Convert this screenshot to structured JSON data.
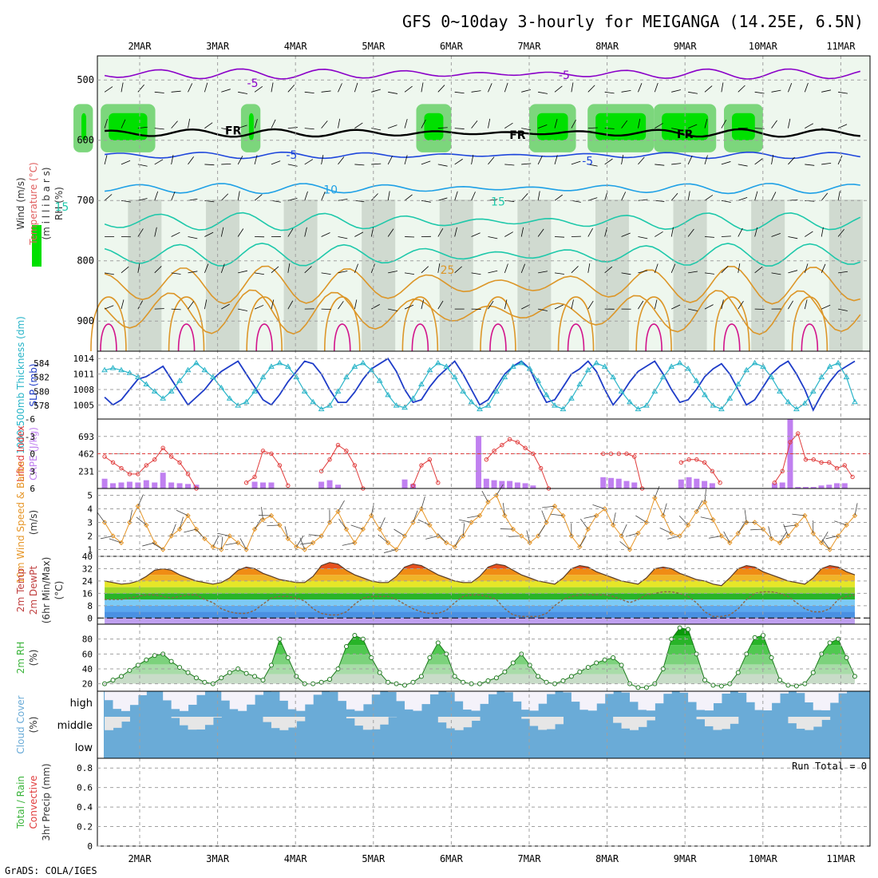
{
  "title": "GFS 0~10day 3-hourly for MEIGANGA (14.25E, 6.5N)",
  "footer": "GrADS: COLA/IGES",
  "dates": [
    "2MAR",
    "3MAR",
    "4MAR",
    "5MAR",
    "6MAR",
    "7MAR",
    "8MAR",
    "9MAR",
    "10MAR",
    "11MAR"
  ],
  "colors": {
    "rh_green": "#00e000",
    "temp_neg": "#8a00c8",
    "temp_blue": "#1e46dc",
    "temp_cyan": "#1ea0e6",
    "temp_teal": "#1ec8aa",
    "temp_orange": "#dc9628",
    "temp_magenta": "#d2148c",
    "slp": "#1e3cc8",
    "thickness": "#28b4c8",
    "cape_bar": "#c080f0",
    "lifted_index": "#e03c3c",
    "wind_speed": "#e69628",
    "rh2m": "#3cb43c",
    "cloud": "#6aabd7",
    "grid": "#a0a0a0"
  },
  "panels": [
    {
      "key": "upper",
      "labels": [
        "Wind (m/s)",
        "Temperature (°C)",
        "(m i l l i b a r s)",
        "RH (%)"
      ]
    },
    {
      "key": "slp",
      "labels": [
        "1000-500mb Thickness (dm)",
        "SLP (mb)"
      ]
    },
    {
      "key": "cape",
      "labels": [
        "Lifted Index",
        "CAPE (J/kg)"
      ]
    },
    {
      "key": "wind",
      "labels": [
        "10m Wind Speed & Barbs",
        "(m/s)"
      ]
    },
    {
      "key": "temp",
      "labels": [
        "2m Temp",
        "2m DewPt",
        "(6hr Min/Max)",
        "(°C)"
      ]
    },
    {
      "key": "rh",
      "labels": [
        "2m RH",
        "(%)"
      ]
    },
    {
      "key": "cloud",
      "labels": [
        "Cloud Cover",
        "(%)"
      ]
    },
    {
      "key": "precip",
      "labels": [
        "Total / Rain",
        "Convective",
        "3hr Precip (mm)"
      ]
    }
  ],
  "chart_data": [
    {
      "panel": "upper",
      "type": "contour",
      "y_axis": {
        "label": "millibars",
        "ticks": [
          500,
          600,
          700,
          800,
          900
        ],
        "range": [
          460,
          950
        ],
        "inverted": true
      },
      "contour_labels": [
        {
          "text": "-5",
          "day": 3.45,
          "p": 505,
          "color": "temp_neg"
        },
        {
          "text": "-5",
          "day": 7.45,
          "p": 492,
          "color": "temp_neg"
        },
        {
          "text": "FR",
          "day": 3.2,
          "p": 584,
          "color": "#000000"
        },
        {
          "text": "FR",
          "day": 6.85,
          "p": 591,
          "color": "#000000"
        },
        {
          "text": "FR",
          "day": 9.0,
          "p": 590,
          "color": "#000000"
        },
        {
          "text": "-5",
          "day": 3.95,
          "p": 624,
          "color": "temp_blue"
        },
        {
          "text": "-5",
          "day": 7.75,
          "p": 634,
          "color": "temp_blue"
        },
        {
          "text": "10",
          "day": 4.45,
          "p": 682,
          "color": "temp_cyan"
        },
        {
          "text": "15",
          "day": 1.0,
          "p": 710,
          "color": "temp_teal"
        },
        {
          "text": "15",
          "day": 6.6,
          "p": 702,
          "color": "temp_teal"
        },
        {
          "text": "25",
          "day": 5.95,
          "p": 815,
          "color": "temp_orange"
        }
      ],
      "freezing_level_mb": 588,
      "rh_moist_bands": [
        [
          1.15,
          1.4
        ],
        [
          1.5,
          2.2
        ],
        [
          3.3,
          3.55
        ],
        [
          5.55,
          6.0
        ],
        [
          7.0,
          7.6
        ],
        [
          7.75,
          8.6
        ],
        [
          8.6,
          9.4
        ],
        [
          9.5,
          10.0
        ]
      ]
    },
    {
      "panel": "slp",
      "type": "line",
      "series": [
        {
          "name": "SLP (mb)",
          "axis": "right",
          "ticks": [
            1005,
            1008,
            1011,
            1014
          ],
          "values": [
            1006.5,
            1005,
            1006,
            1008,
            1010,
            1010.5,
            1011.5,
            1012.5,
            1010,
            1007.5,
            1005,
            1006.5,
            1008,
            1010,
            1011.5,
            1012.5,
            1013.5,
            1011,
            1008.5,
            1006,
            1005,
            1007,
            1009.5,
            1011.5,
            1013.5,
            1013,
            1011,
            1008,
            1005.5,
            1005.5,
            1007.5,
            1010,
            1012,
            1013,
            1014,
            1011.5,
            1008,
            1005.5,
            1006,
            1008.5,
            1010.5,
            1012,
            1013.5,
            1011,
            1008,
            1005,
            1006,
            1008.5,
            1011,
            1012.5,
            1013.5,
            1012,
            1008.5,
            1005.5,
            1006,
            1008.5,
            1011,
            1012,
            1013.5,
            1011.5,
            1008,
            1005,
            1007,
            1009.5,
            1011.5,
            1012.5,
            1013.5,
            1011,
            1008,
            1005.5,
            1006,
            1008,
            1010.5,
            1012,
            1013,
            1011,
            1008,
            1005,
            1006,
            1008.5,
            1011,
            1012.5,
            1013.5,
            1011,
            1008,
            1004,
            1007,
            1009.5,
            1011.5,
            1012.5,
            1013.5
          ]
        },
        {
          "name": "Thickness (dm)",
          "axis": "left",
          "ticks": [
            578,
            580,
            582,
            584
          ],
          "values": [
            583,
            583.3,
            583,
            582.6,
            582,
            581,
            580,
            579,
            580,
            581.5,
            583,
            584,
            583,
            582,
            580.5,
            579,
            578,
            578.5,
            580,
            582,
            583.5,
            584,
            583.5,
            582,
            580,
            578.5,
            577.5,
            578,
            580,
            582,
            583.5,
            584,
            583,
            581.5,
            579.5,
            578,
            577.7,
            579,
            581,
            583,
            584,
            583.5,
            582,
            580,
            578.5,
            577.5,
            578,
            580,
            582,
            583.5,
            584,
            583.2,
            581.5,
            579.5,
            578,
            577.5,
            579,
            581,
            583,
            584,
            583.5,
            582,
            580,
            578.5,
            577.5,
            578,
            580,
            582,
            583.5,
            584,
            583.2,
            581.5,
            579.5,
            578,
            577.5,
            579,
            581,
            583,
            584,
            583.5,
            582,
            580,
            578.5,
            577.5,
            578.3,
            580,
            582,
            583.5,
            584,
            582,
            578.5
          ]
        }
      ]
    },
    {
      "panel": "cape",
      "type": "bar+line",
      "left_axis": {
        "label": "Lifted Index",
        "ticks": [
          -6,
          -3,
          0,
          3,
          6
        ],
        "range": [
          6,
          -6
        ]
      },
      "right_axis": {
        "label": "CAPE (J/kg)",
        "ticks": [
          231,
          462,
          693
        ],
        "range": [
          0,
          924
        ]
      },
      "cape": [
        130,
        70,
        80,
        90,
        80,
        110,
        80,
        210,
        80,
        70,
        60,
        50,
        0,
        0,
        0,
        0,
        0,
        0,
        90,
        80,
        80,
        0,
        0,
        0,
        0,
        0,
        90,
        110,
        50,
        0,
        0,
        0,
        0,
        0,
        0,
        0,
        120,
        60,
        0,
        0,
        0,
        0,
        0,
        0,
        0,
        0,
        0,
        0,
        0,
        0,
        0,
        0,
        0,
        0,
        0,
        0,
        0,
        0,
        0,
        0,
        0,
        0,
        0,
        0,
        0,
        0,
        0,
        0,
        0,
        0,
        0,
        0,
        0,
        0,
        0,
        0,
        0,
        0,
        0,
        0,
        0,
        0,
        0,
        0,
        0,
        0,
        0,
        0,
        0,
        0,
        0
      ],
      "lifted_index": [
        0.5,
        1.5,
        2.5,
        3.5,
        3.5,
        2,
        1,
        -1,
        0.5,
        1.5,
        3.5,
        6,
        null,
        null,
        null,
        null,
        null,
        5,
        4,
        -0.5,
        0,
        2,
        5.5,
        null,
        null,
        null,
        3,
        1,
        -1.5,
        -0.5,
        2,
        6,
        null,
        null,
        null,
        null,
        null,
        5.5,
        2,
        1,
        5,
        null,
        null,
        null,
        null,
        null,
        null,
        null,
        null,
        null,
        null,
        null,
        null,
        null,
        null,
        null,
        null,
        null,
        null,
        null,
        null,
        null,
        null,
        null,
        null,
        null,
        null,
        null,
        null,
        null,
        null,
        null,
        null,
        null,
        null,
        null,
        null,
        null,
        null,
        null,
        null,
        null,
        null,
        null,
        null,
        null,
        null,
        null,
        null,
        null,
        null
      ],
      "cape_extra": [
        [
          6.35,
          700
        ],
        [
          6.45,
          130
        ],
        [
          6.55,
          110
        ],
        [
          6.65,
          100
        ],
        [
          6.75,
          100
        ],
        [
          6.85,
          80
        ],
        [
          6.95,
          70
        ],
        [
          7.05,
          40
        ],
        [
          7.95,
          150
        ],
        [
          8.05,
          140
        ],
        [
          8.15,
          130
        ],
        [
          8.25,
          100
        ],
        [
          8.35,
          80
        ],
        [
          8.95,
          120
        ],
        [
          9.05,
          150
        ],
        [
          9.15,
          130
        ],
        [
          9.25,
          100
        ],
        [
          9.35,
          70
        ],
        [
          10.15,
          70
        ],
        [
          10.25,
          80
        ],
        [
          10.35,
          920
        ],
        [
          10.45,
          20
        ],
        [
          10.55,
          20
        ],
        [
          10.65,
          20
        ],
        [
          10.75,
          40
        ],
        [
          10.85,
          50
        ],
        [
          10.95,
          70
        ],
        [
          11.05,
          70
        ]
      ],
      "li_extra": [
        [
          6.45,
          1
        ],
        [
          6.55,
          -0.5
        ],
        [
          6.65,
          -1.5
        ],
        [
          6.75,
          -2.5
        ],
        [
          6.85,
          -2
        ],
        [
          6.95,
          -1
        ],
        [
          7.05,
          0
        ],
        [
          7.15,
          2.5
        ],
        [
          7.25,
          6
        ],
        [
          7.95,
          0
        ],
        [
          8.05,
          0
        ],
        [
          8.15,
          0
        ],
        [
          8.25,
          0
        ],
        [
          8.35,
          0.5
        ],
        [
          8.45,
          6
        ],
        [
          8.95,
          1.5
        ],
        [
          9.05,
          1
        ],
        [
          9.15,
          1
        ],
        [
          9.25,
          1.5
        ],
        [
          9.35,
          3
        ],
        [
          9.45,
          5
        ],
        [
          10.15,
          5
        ],
        [
          10.25,
          3
        ],
        [
          10.35,
          -2
        ],
        [
          10.45,
          -3.5
        ],
        [
          10.55,
          1
        ],
        [
          10.65,
          1
        ],
        [
          10.75,
          1.5
        ],
        [
          10.85,
          1.5
        ],
        [
          10.95,
          2.5
        ],
        [
          11.05,
          2
        ],
        [
          11.15,
          4
        ]
      ]
    },
    {
      "panel": "wind",
      "type": "line",
      "y_axis": {
        "label": "(m/s)",
        "ticks": [
          1,
          2,
          3,
          4,
          5
        ],
        "range": [
          0.5,
          5.5
        ]
      },
      "values": [
        3,
        2,
        1.5,
        3,
        4.2,
        2.8,
        1.5,
        1,
        2,
        2.5,
        3.5,
        2.5,
        1.8,
        1.2,
        1,
        2,
        1.5,
        1,
        2.5,
        3.2,
        3.5,
        2.8,
        1.8,
        1.2,
        1,
        1.5,
        2,
        3,
        3.8,
        2.5,
        1.5,
        2.5,
        3.5,
        2.5,
        1.5,
        1,
        2,
        3,
        4,
        2.8,
        2,
        1.5,
        1.2,
        2,
        3,
        3.5,
        4.5,
        5,
        3.5,
        2.5,
        2,
        1.5,
        2,
        3,
        4.2,
        3.5,
        2,
        1.2,
        2.5,
        3.5,
        4,
        2.8,
        2,
        1,
        2.2,
        3,
        4.8,
        3.5,
        2.2,
        2,
        2.8,
        3.8,
        4.5,
        3.2,
        2,
        1.5,
        2.2,
        3,
        3,
        2.5,
        1.8,
        1.5,
        2,
        2.8,
        3.5,
        2.2,
        1.5,
        1,
        2,
        2.8,
        3.5
      ]
    },
    {
      "panel": "temp",
      "type": "area+line",
      "y_axis": {
        "label": "(°C)",
        "ticks": [
          0,
          8,
          16,
          24,
          32,
          40
        ],
        "range": [
          -4,
          40
        ]
      },
      "temp_2m": [
        24,
        23,
        22,
        22.5,
        24,
        27,
        31,
        32,
        31,
        28,
        26,
        24,
        23,
        22,
        23,
        26,
        31,
        33,
        32,
        29,
        27,
        25,
        24,
        23,
        23,
        27,
        34,
        36,
        35,
        31,
        28,
        26,
        24,
        23,
        23,
        27,
        33,
        35,
        34,
        31,
        28,
        26,
        24,
        23,
        23,
        27,
        33,
        35,
        34,
        31,
        28,
        26,
        24,
        23,
        22,
        26,
        32,
        34,
        33,
        30,
        28,
        26,
        24,
        23,
        22,
        26,
        32,
        33,
        32,
        29,
        27,
        25,
        24,
        22,
        21,
        26,
        32,
        34,
        33,
        30,
        28,
        26,
        24,
        23,
        22,
        26,
        32,
        34,
        33,
        30,
        28
      ],
      "dewpt_2m": [
        12,
        12,
        12,
        13,
        14,
        15,
        15,
        14,
        13,
        14,
        15,
        15,
        12,
        10,
        6,
        4,
        3,
        3,
        5,
        9,
        13,
        14,
        14,
        13,
        11,
        6,
        3,
        2,
        2,
        4,
        9,
        13,
        14,
        14,
        14,
        12,
        9,
        6,
        4,
        3,
        3,
        5,
        10,
        14,
        15,
        15,
        14,
        12,
        6,
        2,
        1,
        1,
        1,
        3,
        8,
        12,
        14,
        15,
        15,
        15,
        15,
        14,
        12,
        10,
        12,
        15,
        16,
        17,
        17,
        16,
        14,
        10,
        4,
        1,
        1,
        2,
        6,
        12,
        16,
        17,
        17,
        16,
        14,
        10,
        6,
        4,
        4,
        6,
        12,
        14,
        15
      ]
    },
    {
      "panel": "rh",
      "type": "area",
      "y_axis": {
        "label": "(%)",
        "ticks": [
          20,
          40,
          60,
          80
        ],
        "range": [
          10,
          100
        ]
      },
      "values": [
        20,
        25,
        30,
        38,
        45,
        52,
        58,
        60,
        50,
        42,
        35,
        28,
        22,
        20,
        28,
        35,
        40,
        34,
        30,
        25,
        45,
        80,
        55,
        30,
        20,
        20,
        22,
        26,
        40,
        70,
        85,
        80,
        55,
        35,
        22,
        20,
        18,
        22,
        30,
        55,
        75,
        60,
        30,
        22,
        20,
        20,
        24,
        28,
        36,
        48,
        60,
        45,
        30,
        22,
        20,
        24,
        30,
        36,
        42,
        48,
        52,
        55,
        45,
        20,
        15,
        15,
        20,
        40,
        80,
        95,
        93,
        60,
        25,
        18,
        17,
        20,
        35,
        60,
        82,
        85,
        55,
        25,
        18,
        17,
        20,
        35,
        60,
        75,
        80,
        55,
        30
      ]
    },
    {
      "panel": "cloud",
      "type": "step",
      "levels": [
        "high",
        "middle",
        "low"
      ]
    },
    {
      "panel": "precip",
      "type": "bar",
      "y_axis": {
        "label": "3hr Precip (mm)",
        "ticks": [
          0,
          0.2,
          0.4,
          0.6,
          0.8
        ],
        "range": [
          0,
          0.9
        ]
      },
      "run_total": "Run Total = 0"
    }
  ]
}
